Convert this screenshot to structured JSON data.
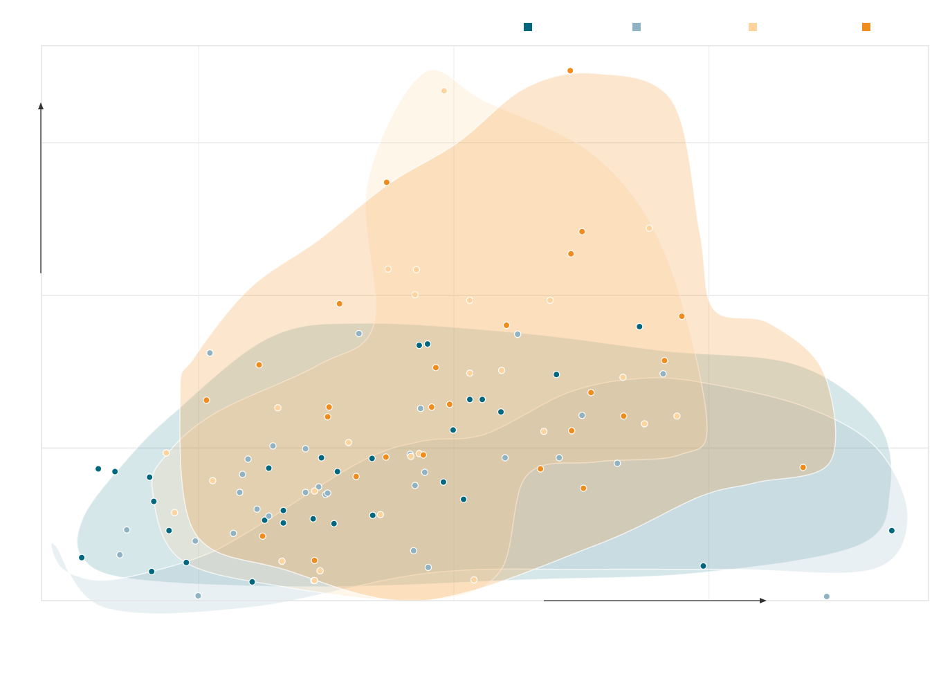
{
  "chart_data": {
    "type": "scatter",
    "title": "",
    "xlabel": "",
    "ylabel": "",
    "xlim": [
      0,
      1280
    ],
    "ylim": [
      0,
      800
    ],
    "grid": true,
    "legend_position": "top-right",
    "series": [
      {
        "color": "#00677f",
        "hull": [
          [
            60,
            60
          ],
          [
            140,
            30
          ],
          [
            400,
            20
          ],
          [
            700,
            30
          ],
          [
            950,
            40
          ],
          [
            1180,
            80
          ],
          [
            1225,
            160
          ],
          [
            1205,
            260
          ],
          [
            1090,
            340
          ],
          [
            900,
            360
          ],
          [
            700,
            385
          ],
          [
            470,
            400
          ],
          [
            330,
            380
          ],
          [
            190,
            270
          ],
          [
            120,
            200
          ],
          [
            60,
            120
          ]
        ],
        "points": [
          [
            58,
            62
          ],
          [
            82,
            190
          ],
          [
            106,
            186
          ],
          [
            156,
            178
          ],
          [
            162,
            143
          ],
          [
            159,
            42
          ],
          [
            184,
            101
          ],
          [
            209,
            55
          ],
          [
            304,
            27
          ],
          [
            322,
            116
          ],
          [
            328,
            191
          ],
          [
            349,
            130
          ],
          [
            392,
            118
          ],
          [
            422,
            111
          ],
          [
            427,
            186
          ],
          [
            477,
            205
          ],
          [
            478,
            123
          ],
          [
            545,
            368
          ],
          [
            557,
            370
          ],
          [
            580,
            171
          ],
          [
            594,
            246
          ],
          [
            609,
            146
          ],
          [
            618,
            290
          ],
          [
            636,
            290
          ],
          [
            663,
            272
          ],
          [
            743,
            326
          ],
          [
            863,
            395
          ],
          [
            955,
            50
          ],
          [
            1227,
            101
          ],
          [
            404,
            206
          ],
          [
            349,
            112
          ]
        ]
      },
      {
        "color": "#8fb3c2",
        "hull": [
          [
            20,
            80
          ],
          [
            90,
            -10
          ],
          [
            300,
            -10
          ],
          [
            560,
            40
          ],
          [
            800,
            45
          ],
          [
            1000,
            45
          ],
          [
            1200,
            45
          ],
          [
            1250,
            120
          ],
          [
            1205,
            220
          ],
          [
            1100,
            280
          ],
          [
            950,
            315
          ],
          [
            860,
            320
          ],
          [
            760,
            300
          ],
          [
            640,
            240
          ],
          [
            550,
            230
          ],
          [
            460,
            200
          ],
          [
            300,
            100
          ],
          [
            220,
            60
          ],
          [
            100,
            30
          ],
          [
            40,
            40
          ],
          [
            20,
            60
          ]
        ],
        "points": [
          [
            113,
            66
          ],
          [
            123,
            102
          ],
          [
            222,
            86
          ],
          [
            226,
            7
          ],
          [
            243,
            357
          ],
          [
            277,
            97
          ],
          [
            286,
            156
          ],
          [
            290,
            182
          ],
          [
            298,
            204
          ],
          [
            311,
            132
          ],
          [
            328,
            122
          ],
          [
            334,
            223
          ],
          [
            381,
            219
          ],
          [
            381,
            156
          ],
          [
            400,
            164
          ],
          [
            410,
            153
          ],
          [
            413,
            155
          ],
          [
            458,
            385
          ],
          [
            532,
            211
          ],
          [
            537,
            72
          ],
          [
            547,
            277
          ],
          [
            553,
            185
          ],
          [
            558,
            48
          ],
          [
            539,
            166
          ],
          [
            669,
            206
          ],
          [
            687,
            384
          ],
          [
            747,
            206
          ],
          [
            780,
            267
          ],
          [
            831,
            198
          ],
          [
            897,
            327
          ],
          [
            1133,
            6
          ]
        ]
      },
      {
        "color": "#fdd49e",
        "hull": [
          [
            180,
            210
          ],
          [
            250,
            270
          ],
          [
            400,
            340
          ],
          [
            480,
            400
          ],
          [
            470,
            600
          ],
          [
            550,
            760
          ],
          [
            640,
            720
          ],
          [
            800,
            640
          ],
          [
            900,
            500
          ],
          [
            960,
            260
          ],
          [
            920,
            210
          ],
          [
            800,
            200
          ],
          [
            700,
            180
          ],
          [
            660,
            40
          ],
          [
            550,
            0
          ],
          [
            350,
            20
          ],
          [
            200,
            60
          ],
          [
            160,
            160
          ]
        ],
        "points": [
          [
            180,
            213
          ],
          [
            192,
            127
          ],
          [
            247,
            173
          ],
          [
            341,
            278
          ],
          [
            347,
            57
          ],
          [
            394,
            158
          ],
          [
            393,
            29
          ],
          [
            443,
            228
          ],
          [
            489,
            124
          ],
          [
            500,
            478
          ],
          [
            533,
            208
          ],
          [
            545,
            212
          ],
          [
            539,
            441
          ],
          [
            541,
            477
          ],
          [
            581,
            735
          ],
          [
            618,
            433
          ],
          [
            618,
            328
          ],
          [
            624,
            30
          ],
          [
            664,
            332
          ],
          [
            725,
            244
          ],
          [
            734,
            433
          ],
          [
            839,
            322
          ],
          [
            870,
            255
          ],
          [
            877,
            537
          ],
          [
            917,
            266
          ],
          [
            394,
            29
          ],
          [
            402,
            43
          ]
        ]
      },
      {
        "color": "#f08c1e",
        "hull": [
          [
            200,
            300
          ],
          [
            220,
            100
          ],
          [
            350,
            45
          ],
          [
            550,
            0
          ],
          [
            800,
            80
          ],
          [
            950,
            150
          ],
          [
            1030,
            170
          ],
          [
            1138,
            200
          ],
          [
            1128,
            330
          ],
          [
            1050,
            400
          ],
          [
            970,
            420
          ],
          [
            950,
            530
          ],
          [
            910,
            720
          ],
          [
            800,
            760
          ],
          [
            700,
            740
          ],
          [
            600,
            660
          ],
          [
            500,
            600
          ],
          [
            400,
            520
          ],
          [
            300,
            450
          ],
          [
            220,
            350
          ]
        ],
        "points": [
          [
            238,
            289
          ],
          [
            314,
            340
          ],
          [
            319,
            93
          ],
          [
            394,
            58
          ],
          [
            413,
            265
          ],
          [
            415,
            279
          ],
          [
            430,
            428
          ],
          [
            454,
            179
          ],
          [
            498,
            603
          ],
          [
            497,
            207
          ],
          [
            551,
            210
          ],
          [
            563,
            279
          ],
          [
            569,
            336
          ],
          [
            589,
            283
          ],
          [
            671,
            397
          ],
          [
            720,
            190
          ],
          [
            765,
            245
          ],
          [
            764,
            500
          ],
          [
            780,
            532
          ],
          [
            763,
            764
          ],
          [
            782,
            162
          ],
          [
            793,
            300
          ],
          [
            840,
            266
          ],
          [
            899,
            346
          ],
          [
            924,
            410
          ],
          [
            1099,
            192
          ]
        ]
      }
    ]
  }
}
